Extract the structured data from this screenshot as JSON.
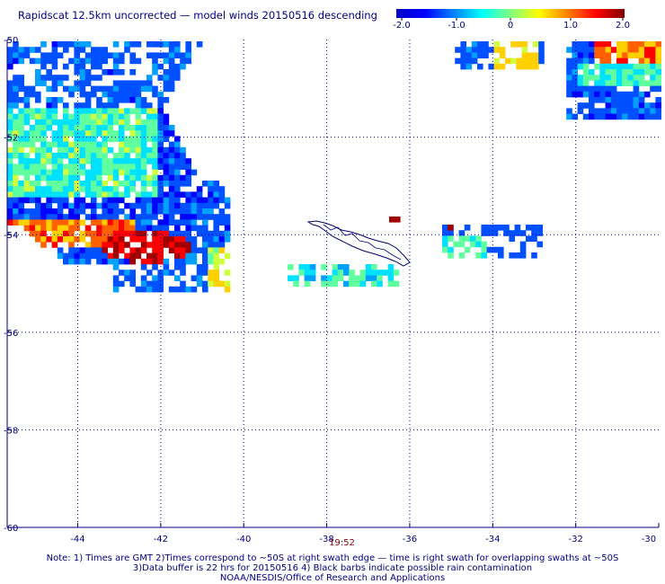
{
  "title": "Rapidscat 12.5km uncorrected — model winds 20150516 descending",
  "colorbar": {
    "labels": [
      "-2.0",
      "-1.0",
      "0",
      "1.0",
      "2.0"
    ],
    "colors": [
      "#0000c8",
      "#0000ff",
      "#0080ff",
      "#00ffff",
      "#80ff80",
      "#ffff00",
      "#ff8000",
      "#ff0000",
      "#800000"
    ]
  },
  "map": {
    "lat_labels": [
      "-50",
      "-52",
      "-54",
      "-56",
      "-58",
      "-60"
    ],
    "lon_labels": [
      "-44",
      "-42",
      "-40",
      "-38",
      "-36",
      "-34",
      "-32",
      "-30"
    ],
    "time_label": "19:52",
    "grid": true,
    "land": "South Georgia island outline"
  },
  "notes": [
    "Note: 1) Times are GMT 2)Times correspond to ~50S at right swath edge — time is right swath for overlapping swaths at ~50S",
    "3)Data buffer is 22 hrs for 20150516 4) Black barbs indicate possible rain contamination",
    "NOAA/NESDIS/Office of Research and Applications"
  ]
}
